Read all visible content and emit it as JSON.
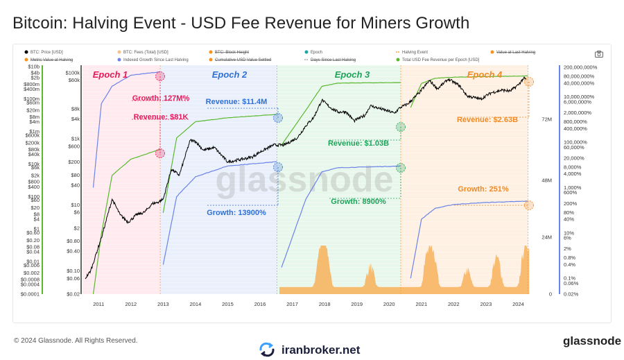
{
  "page": {
    "title": "Bitcoin: Halving Event - USD Fee Revenue for Miners Growth",
    "copyright": "© 2024 Glassnode. All Rights Reserved.",
    "brand": "glassnode",
    "watermark": "glassnode",
    "site": "iranbroker.net"
  },
  "icons": {
    "camera": "camera-icon",
    "site_logo": "refresh-arrows-icon"
  },
  "chart_data": {
    "type": "line",
    "title": "Bitcoin: Halving Event - USD Fee Revenue for Miners Growth",
    "legend_placement": "top",
    "legend": [
      {
        "label": "BTC: Price [USD]",
        "color": "#000000",
        "style": "dot"
      },
      {
        "label": "BTC: Fees (Total) [USD]",
        "color": "#f7c08a",
        "style": "dot"
      },
      {
        "label": "BTC: Block Height",
        "color": "#f7931a",
        "style": "dot",
        "struck": true
      },
      {
        "label": "Epoch",
        "color": "#1aa6a6",
        "style": "dot"
      },
      {
        "label": "Halving Event",
        "color": "#f7931a",
        "style": "dash"
      },
      {
        "label": "Value at Last Halving",
        "color": "#f7931a",
        "style": "dot",
        "struck": true
      },
      {
        "label": "Metric Value at Halving",
        "color": "#f7931a",
        "style": "dot",
        "struck": true
      },
      {
        "label": "Indexed Growth Since Last Halving",
        "color": "#6b82e8",
        "style": "dot"
      },
      {
        "label": "Cumulative USD Value Settled",
        "color": "#f7931a",
        "style": "dot",
        "struck": true
      },
      {
        "label": "Days Since Last Halving",
        "color": "#999999",
        "style": "dash",
        "struck": true
      },
      {
        "label": "Total USD Fee Revenue per Epoch [USD]",
        "color": "#5ab82d",
        "style": "dot"
      }
    ],
    "x_ticks": [
      "2011",
      "2012",
      "2013",
      "2014",
      "2015",
      "2016",
      "2017",
      "2018",
      "2019",
      "2020",
      "2021",
      "2022",
      "2023",
      "2024"
    ],
    "x_range": [
      "2010-07",
      "2024-05"
    ],
    "left_axis_price": {
      "scale": "log",
      "ticks": [
        "$100k",
        "$60k",
        "$8k",
        "$4k",
        "$1k",
        "$600",
        "$200",
        "$80",
        "$40",
        "$10",
        "$6",
        "$2",
        "$0.80",
        "$0.40",
        "$0.10",
        "$0.06",
        "$0.02"
      ]
    },
    "left_axis_fees": {
      "scale": "log",
      "ticks": [
        "$10b",
        "$4b",
        "$2b",
        "$800m",
        "$400m",
        "$100m",
        "$60m",
        "$20m",
        "$8m",
        "$4m",
        "$1m",
        "$600k",
        "$200k",
        "$80k",
        "$40k",
        "$10k",
        "$6k",
        "$2k",
        "$800",
        "$400",
        "$100",
        "$60",
        "$20",
        "$8",
        "$4",
        "$1",
        "$0.60",
        "$0.20",
        "$0.08",
        "$0.04",
        "$0.01",
        "$0.006",
        "$0.002",
        "$0.0008",
        "$0.0004",
        "$0.0001"
      ]
    },
    "right_axis_block_height": {
      "ticks": [
        "72M",
        "48M",
        "24M",
        "0"
      ]
    },
    "right_axis_growth": {
      "scale": "log",
      "ticks": [
        "200,000,000%",
        "80,000,000%",
        "40,000,000%",
        "10,000,000%",
        "6,000,000%",
        "2,000,000%",
        "800,000%",
        "400,000%",
        "100,000%",
        "60,000%",
        "20,000%",
        "8,000%",
        "4,000%",
        "1,000%",
        "600%",
        "200%",
        "80%",
        "40%",
        "10%",
        "6%",
        "2%",
        "0.8%",
        "0.4%",
        "0.1%",
        "0.06%",
        "0.02%"
      ]
    },
    "halvings": [
      "2012-11-28",
      "2016-07-09",
      "2020-05-11",
      "2024-04-20"
    ],
    "epochs": [
      {
        "label": "Epoch 1",
        "color": "#e6195a",
        "bg": "#fde3ea",
        "start": "2010-07",
        "end": "2012-11-28"
      },
      {
        "label": "Epoch 2",
        "color": "#2f6fd6",
        "bg": "#e1ebfa",
        "start": "2012-11-28",
        "end": "2016-07-09"
      },
      {
        "label": "Epoch 3",
        "color": "#1fa35a",
        "bg": "#e0f4e6",
        "start": "2016-07-09",
        "end": "2020-05-11"
      },
      {
        "label": "Epoch 4",
        "color": "#f08a24",
        "bg": "#fdebd8",
        "start": "2020-05-11",
        "end": "2024-04-20"
      }
    ],
    "annotations": [
      {
        "text": "Growth: 127M%",
        "color": "#e6195a"
      },
      {
        "text": "Revenue: $81K",
        "color": "#e6195a"
      },
      {
        "text": "Revenue: $11.4M",
        "color": "#2f6fd6"
      },
      {
        "text": "Growth: 13900%",
        "color": "#2f6fd6"
      },
      {
        "text": "Revenue: $1.03B",
        "color": "#1fa35a"
      },
      {
        "text": "Growth: 8900%",
        "color": "#1fa35a"
      },
      {
        "text": "Revenue: $2.63B",
        "color": "#f08a24"
      },
      {
        "text": "Growth: 251%",
        "color": "#f08a24"
      }
    ],
    "series": [
      {
        "name": "BTC: Price [USD]",
        "color": "#000000",
        "x": [
          "2010-08",
          "2010-10",
          "2011-02",
          "2011-06",
          "2011-09",
          "2011-12",
          "2012-03",
          "2012-06",
          "2012-09",
          "2012-11",
          "2013-01",
          "2013-04",
          "2013-07",
          "2013-11",
          "2014-01",
          "2014-04",
          "2014-08",
          "2015-01",
          "2015-06",
          "2015-10",
          "2016-01",
          "2016-06",
          "2016-10",
          "2017-03",
          "2017-06",
          "2017-09",
          "2017-12",
          "2018-03",
          "2018-06",
          "2018-09",
          "2018-12",
          "2019-04",
          "2019-06",
          "2019-09",
          "2019-12",
          "2020-03",
          "2020-05",
          "2020-08",
          "2020-12",
          "2021-04",
          "2021-07",
          "2021-11",
          "2022-03",
          "2022-06",
          "2022-11",
          "2023-03",
          "2023-07",
          "2023-10",
          "2024-01",
          "2024-03",
          "2024-04"
        ],
        "values": [
          0.06,
          0.1,
          1,
          15,
          5,
          3,
          5,
          6,
          11,
          12,
          15,
          120,
          80,
          900,
          850,
          450,
          550,
          200,
          240,
          280,
          400,
          650,
          650,
          1100,
          2500,
          4500,
          15000,
          9000,
          6500,
          6600,
          3500,
          5200,
          10000,
          8500,
          7200,
          6000,
          8800,
          11500,
          24000,
          58000,
          33000,
          64000,
          42000,
          20000,
          16000,
          25000,
          30000,
          28000,
          43000,
          68000,
          63000
        ]
      },
      {
        "name": "Total USD Fee Revenue per Epoch [USD]",
        "color": "#5ab82d",
        "x": [
          "2010-11",
          "2011-02",
          "2011-06",
          "2012-01",
          "2012-11-28",
          "2013-01",
          "2013-06",
          "2014-01",
          "2015-01",
          "2016-07-09",
          "2016-09",
          "2017-06",
          "2017-12",
          "2018-06",
          "2020-05-11",
          "2020-09",
          "2021-01",
          "2021-06",
          "2022-01",
          "2023-01",
          "2024-04-20"
        ],
        "values": [
          0.0001,
          0.5,
          2000,
          20000,
          81000,
          10,
          400000,
          4000000,
          7000000,
          11400000,
          150000,
          20000000,
          600000000,
          950000000,
          1030000000,
          30000000,
          900000000,
          1900000000,
          2200000000,
          2400000000,
          2630000000
        ]
      },
      {
        "name": "Indexed Growth Since Last Halving",
        "color": "#6b82e8",
        "x": [
          "2010-11",
          "2011-02",
          "2011-06",
          "2012-01",
          "2012-11-28",
          "2013-01",
          "2013-06",
          "2014-01",
          "2015-01",
          "2016-07-09",
          "2016-09",
          "2017-06",
          "2017-12",
          "2018-06",
          "2020-05-11",
          "2020-09",
          "2021-01",
          "2021-06",
          "2022-01",
          "2023-01",
          "2024-04-20"
        ],
        "values": [
          1000,
          5000000,
          30000000,
          90000000,
          127000000,
          0.4,
          400,
          3000,
          9000,
          13900,
          0.3,
          300,
          5000,
          7500,
          8900,
          0.1,
          40,
          120,
          180,
          220,
          251
        ]
      },
      {
        "name": "BTC: Fees (Total) [USD]",
        "color": "#f7c08a",
        "x": [
          "2017-12",
          "2018-01",
          "2019-06",
          "2021-04",
          "2021-05",
          "2022-06",
          "2023-05",
          "2024-04"
        ],
        "values": [
          70000000,
          60000000,
          5000000,
          60000000,
          30000000,
          3000000,
          15000000,
          80000000
        ]
      }
    ]
  }
}
